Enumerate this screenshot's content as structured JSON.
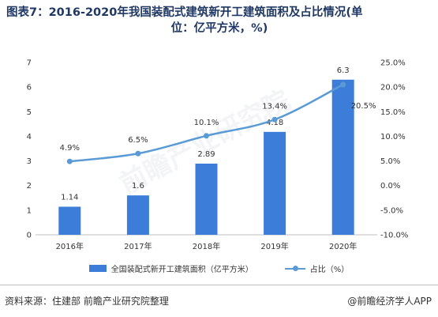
{
  "header": {
    "title_line1": "图表7：2016-2020年我国装配式建筑新开工建筑面积及占比情况(单",
    "title_line2": "位：亿平方米，%)"
  },
  "footer": {
    "source": "资料来源：住建部 前瞻产业研究院整理",
    "credit": "@前瞻经济学人APP"
  },
  "watermark": "前瞻产业研究院",
  "colors": {
    "bar": "#3c7dd9",
    "line": "#5b9bd5",
    "title": "#1f3864"
  },
  "chart_data": {
    "type": "bar+line",
    "categories": [
      "2016年",
      "2017年",
      "2018年",
      "2019年",
      "2020年"
    ],
    "series": [
      {
        "name": "全国装配式新开工建筑面积（亿平方米）",
        "type": "bar",
        "axis": "left",
        "values": [
          1.14,
          1.6,
          2.89,
          4.18,
          6.3
        ],
        "labels": [
          "1.14",
          "1.6",
          "2.89",
          "4.18",
          "6.3"
        ]
      },
      {
        "name": "占比（%）",
        "type": "line",
        "axis": "right",
        "values": [
          4.9,
          6.5,
          10.1,
          13.4,
          20.5
        ],
        "labels": [
          "4.9%",
          "6.5%",
          "10.1%",
          "13.4%",
          "20.5%"
        ]
      }
    ],
    "y_left": {
      "min": 0,
      "max": 7,
      "ticks": [
        0,
        1,
        2,
        3,
        4,
        5,
        6,
        7
      ],
      "tick_labels": [
        "0",
        "1",
        "2",
        "3",
        "4",
        "5",
        "6",
        "7"
      ]
    },
    "y_right": {
      "min": -10,
      "max": 25,
      "ticks": [
        -10,
        -5,
        0,
        5,
        10,
        15,
        20,
        25
      ],
      "tick_labels": [
        "-10.0%",
        "-5.0%",
        "0.0%",
        "5.0%",
        "10.0%",
        "15.0%",
        "20.0%",
        "25.0%"
      ]
    },
    "grid": false,
    "legend_position": "bottom"
  }
}
